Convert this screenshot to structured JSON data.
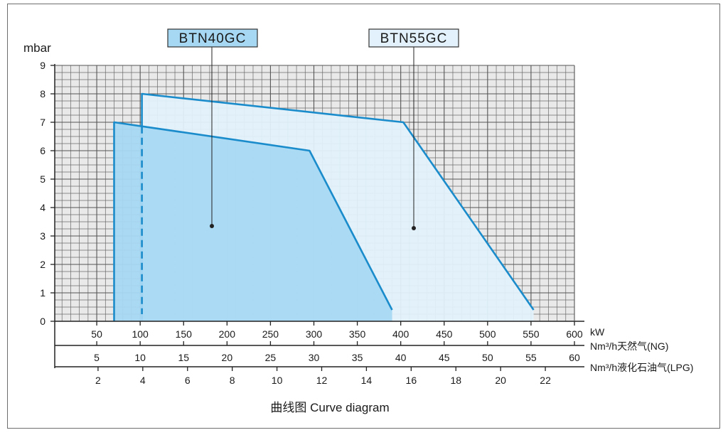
{
  "chart_data": {
    "type": "area",
    "title": "曲线图 Curve diagram",
    "ylabel": "mbar",
    "ylim": [
      0,
      9
    ],
    "yticks": [
      "0",
      "1",
      "2",
      "3",
      "4",
      "5",
      "6",
      "7",
      "8",
      "9"
    ],
    "xlim": [
      0,
      600
    ],
    "grid": true,
    "axes": [
      {
        "unit": "kW",
        "ticks": [
          "50",
          "100",
          "150",
          "200",
          "250",
          "300",
          "350",
          "400",
          "450",
          "500",
          "550",
          "600"
        ]
      },
      {
        "unit": "Nm³/h天然气(NG)",
        "ticks": [
          "5",
          "10",
          "15",
          "20",
          "25",
          "30",
          "35",
          "40",
          "45",
          "50",
          "55",
          "60"
        ]
      },
      {
        "unit": "Nm³/h液化石油气(LPG)",
        "ticks": [
          "2",
          "4",
          "6",
          "8",
          "10",
          "12",
          "14",
          "16",
          "18",
          "20",
          "22"
        ]
      }
    ],
    "series": [
      {
        "name": "BTN55GC",
        "color": "#1b8ccb",
        "fill": "#e2f1fb",
        "points": [
          [
            102,
            0
          ],
          [
            102,
            8
          ],
          [
            403,
            7
          ],
          [
            553,
            0.4
          ],
          [
            553,
            0
          ]
        ]
      },
      {
        "name": "BTN40GC",
        "color": "#1b8ccb",
        "fill": "#a6d8f3",
        "points": [
          [
            70,
            0
          ],
          [
            70,
            7
          ],
          [
            295,
            6
          ],
          [
            390,
            0.4
          ],
          [
            390,
            0
          ]
        ],
        "dashed_x": 102
      }
    ]
  }
}
